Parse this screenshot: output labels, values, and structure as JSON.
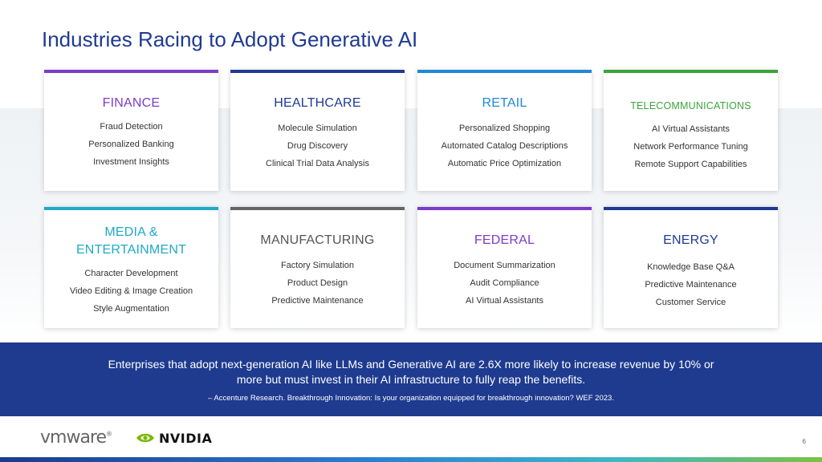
{
  "title": "Industries Racing to Adopt Generative AI",
  "cards": [
    {
      "heading": "FINANCE",
      "color": "#7d3cc7",
      "items": [
        "Fraud Detection",
        "Personalized Banking",
        "Investment Insights"
      ]
    },
    {
      "heading": "HEALTHCARE",
      "color": "#1f3a93",
      "items": [
        "Molecule Simulation",
        "Drug Discovery",
        "Clinical Trial Data Analysis"
      ]
    },
    {
      "heading": "RETAIL",
      "color": "#1e88d8",
      "items": [
        "Personalized Shopping",
        "Automated Catalog Descriptions",
        "Automatic Price Optimization"
      ]
    },
    {
      "heading": "TELECOMMUNICATIONS",
      "color": "#3aa53a",
      "items": [
        "AI Virtual Assistants",
        "Network Performance Tuning",
        "Remote Support Capabilities"
      ]
    },
    {
      "heading": "MEDIA &",
      "heading2": "ENTERTAINMENT",
      "color": "#1fa9c8",
      "items": [
        "Character Development",
        "Video Editing & Image Creation",
        "Style Augmentation"
      ]
    },
    {
      "heading": "MANUFACTURING",
      "color": "#666666",
      "items": [
        "Factory Simulation",
        "Product Design",
        "Predictive Maintenance"
      ]
    },
    {
      "heading": "FEDERAL",
      "color": "#7d3cc7",
      "items": [
        "Document Summarization",
        "Audit Compliance",
        "AI Virtual Assistants"
      ]
    },
    {
      "heading": "ENERGY",
      "color": "#1f3a93",
      "items": [
        "Knowledge Base Q&A",
        "Predictive Maintenance",
        "Customer Service"
      ]
    }
  ],
  "banner": {
    "statement": "Enterprises that adopt next-generation AI like LLMs and Generative AI are 2.6X more likely to increase revenue by 10% or more but must invest in their AI infrastructure to fully reap the benefits.",
    "citation": "– Accenture Research. Breakthrough Innovation: Is your organization equipped for breakthrough innovation? WEF 2023."
  },
  "footer": {
    "vmware_logo": "vmware",
    "nvidia_logo": "NVIDIA",
    "page_number": "6"
  }
}
